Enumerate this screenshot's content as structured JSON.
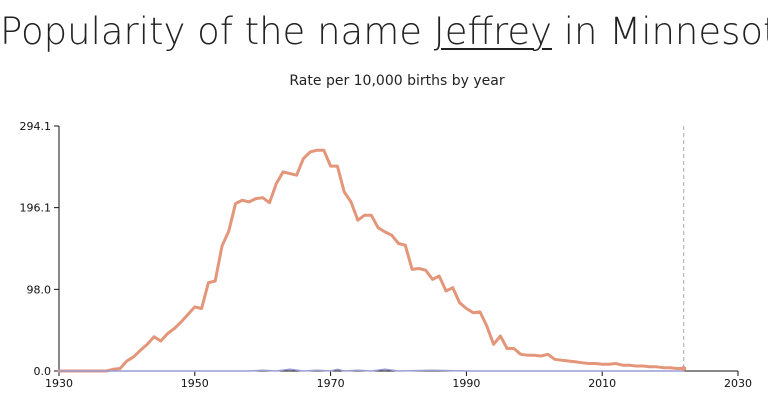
{
  "header": {
    "title_prefix": "Popularity of the name ",
    "name": "Jeffrey",
    "title_suffix": " in Minnesota",
    "subtitle": "Rate per 10,000 births by year"
  },
  "chart_data": {
    "type": "line",
    "title": "Popularity of the name Jeffrey in Minnesota",
    "subtitle": "Rate per 10,000 births by year",
    "xlabel": "",
    "ylabel": "",
    "xlim": [
      1930,
      2030
    ],
    "ylim": [
      0,
      294.1
    ],
    "x_ticks": [
      "1930",
      "1950",
      "1970",
      "1990",
      "2010",
      "2030"
    ],
    "y_ticks": [
      "0.0",
      "98.0",
      "196.1",
      "294.1"
    ],
    "marker_year": 2022,
    "colors": {
      "male": "#e3967a",
      "female": "#9b9bd6",
      "marker": "#aaaaaa"
    },
    "series": [
      {
        "name": "",
        "x": [
          1930,
          1931,
          1932,
          1933,
          1934,
          1935,
          1936,
          1937,
          1938,
          1939,
          1940,
          1941,
          1942,
          1943,
          1944,
          1945,
          1946,
          1947,
          1948,
          1949,
          1950,
          1951,
          1952,
          1953,
          1954,
          1955,
          1956,
          1957,
          1958,
          1959,
          1960,
          1961,
          1962,
          1963,
          1964,
          1965,
          1966,
          1967,
          1968,
          1969,
          1970,
          1971,
          1972,
          1973,
          1974,
          1975,
          1976,
          1977,
          1978,
          1979,
          1980,
          1981,
          1982,
          1983,
          1984,
          1985,
          1986,
          1987,
          1988,
          1989,
          1990,
          1991,
          1992,
          1993,
          1994,
          1995,
          1996,
          1997,
          1998,
          1999,
          2000,
          2001,
          2002,
          2003,
          2004,
          2005,
          2006,
          2007,
          2008,
          2009,
          2010,
          2011,
          2012,
          2013,
          2014,
          2015,
          2016,
          2017,
          2018,
          2019,
          2020,
          2021,
          2022
        ],
        "values": [
          0,
          0,
          0,
          0,
          0,
          0,
          0,
          0,
          2,
          3,
          12,
          17,
          25,
          32,
          41,
          36,
          45,
          51,
          59,
          68,
          77,
          75,
          106,
          108,
          150,
          168,
          201,
          205,
          203,
          207,
          208,
          202,
          225,
          239,
          237,
          235,
          255,
          263,
          265,
          265,
          246,
          246,
          215,
          203,
          181,
          187,
          187,
          172,
          167,
          163,
          153,
          151,
          122,
          123,
          121,
          110,
          114,
          96,
          100,
          82,
          75,
          70,
          71,
          54,
          32,
          42,
          27,
          27,
          20,
          19,
          19,
          18,
          20,
          14,
          13,
          12,
          11,
          10,
          9,
          9,
          8,
          8,
          9,
          7,
          7,
          6,
          6,
          5,
          5,
          4,
          4,
          3,
          3
        ]
      },
      {
        "name": "",
        "x": [
          1930,
          1958,
          1960,
          1962,
          1964,
          1966,
          1968,
          1970,
          1971,
          1972,
          1974,
          1976,
          1978,
          1980,
          1985,
          1990,
          2000,
          2010,
          2022
        ],
        "values": [
          0,
          0,
          1,
          0,
          2,
          0,
          1,
          0,
          2,
          0,
          1,
          0,
          2,
          0,
          1,
          0,
          0,
          0,
          0
        ]
      }
    ]
  }
}
